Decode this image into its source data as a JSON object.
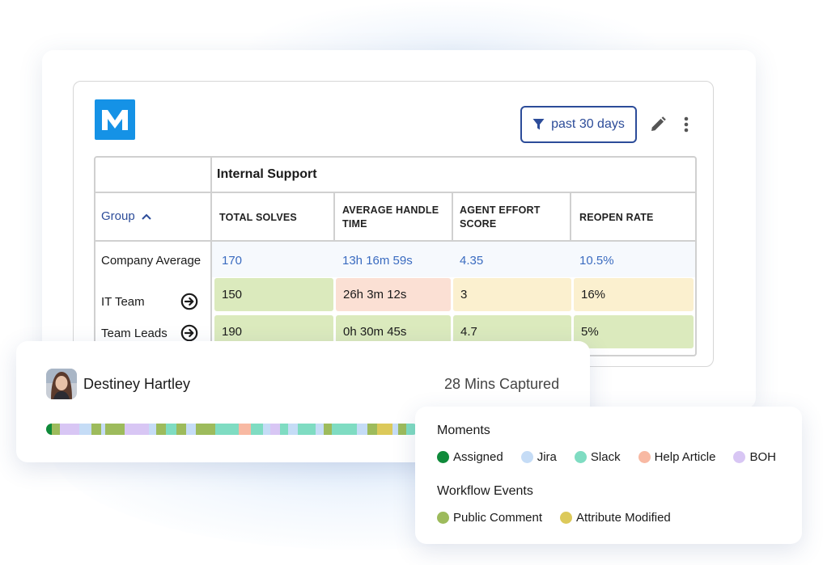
{
  "brand": {
    "logo_letter": "M",
    "logo_color": "#1592e6",
    "accent": "#2c4c99"
  },
  "toolbar": {
    "filter_label": "past 30 days",
    "filter_icon": "filter-icon",
    "edit_icon": "pencil-icon",
    "more_icon": "more-vertical-icon"
  },
  "table": {
    "section_title": "Internal Support",
    "group_header": "Group",
    "columns": [
      "TOTAL SOLVES",
      "AVERAGE HANDLE\nTIME",
      "AGENT EFFORT\nSCORE",
      "REOPEN RATE"
    ],
    "average_row": {
      "label": "Company Average",
      "values": [
        "170",
        "13h 16m 59s",
        "4.35",
        "10.5%"
      ]
    },
    "rows": [
      {
        "label": "IT Team",
        "values": [
          "150",
          "26h 3m 12s",
          "3",
          "16%"
        ],
        "statuses": [
          "good",
          "bad",
          "warn",
          "warn"
        ]
      },
      {
        "label": "Team Leads",
        "values": [
          "190",
          "0h 30m 45s",
          "4.7",
          "5%"
        ],
        "statuses": [
          "good",
          "good",
          "good",
          "good"
        ]
      }
    ],
    "status_colors": {
      "good": "#dbeabd",
      "bad": "#fbe0d4",
      "warn": "#fbf0cf"
    }
  },
  "profile": {
    "name": "Destiney Hartley",
    "captured": "28 Mins Captured"
  },
  "timeline_segments": [
    {
      "type": "assigned",
      "w": 1.5
    },
    {
      "type": "public",
      "w": 2
    },
    {
      "type": "boh",
      "w": 5
    },
    {
      "type": "jira",
      "w": 3
    },
    {
      "type": "public",
      "w": 2.5
    },
    {
      "type": "jira",
      "w": 1
    },
    {
      "type": "public",
      "w": 5
    },
    {
      "type": "boh",
      "w": 6
    },
    {
      "type": "jira",
      "w": 2
    },
    {
      "type": "public",
      "w": 2.5
    },
    {
      "type": "slack",
      "w": 2.5
    },
    {
      "type": "public",
      "w": 2.5
    },
    {
      "type": "jira",
      "w": 2.5
    },
    {
      "type": "public",
      "w": 5
    },
    {
      "type": "slack",
      "w": 6
    },
    {
      "type": "help",
      "w": 3
    },
    {
      "type": "slack",
      "w": 3
    },
    {
      "type": "jira",
      "w": 2
    },
    {
      "type": "boh",
      "w": 2.5
    },
    {
      "type": "slack",
      "w": 2
    },
    {
      "type": "jira",
      "w": 2.5
    },
    {
      "type": "slack",
      "w": 4.5
    },
    {
      "type": "jira",
      "w": 2
    },
    {
      "type": "public",
      "w": 2
    },
    {
      "type": "slack",
      "w": 6.5
    },
    {
      "type": "jira",
      "w": 2.5
    },
    {
      "type": "public",
      "w": 2.5
    },
    {
      "type": "attr",
      "w": 4
    },
    {
      "type": "jira",
      "w": 1.5
    },
    {
      "type": "public",
      "w": 2
    },
    {
      "type": "slack",
      "w": 3
    }
  ],
  "legend": {
    "moments_title": "Moments",
    "moments": [
      {
        "label": "Assigned",
        "color": "#0f8a3a",
        "icon": "dot"
      },
      {
        "label": "Jira",
        "color": "#c5dcf6",
        "icon": "dot"
      },
      {
        "label": "Slack",
        "color": "#7fdcc2",
        "icon": "dot"
      },
      {
        "label": "Help Article",
        "color": "#f8b9a3",
        "icon": "dot"
      },
      {
        "label": "BOH",
        "color": "#d8c6f4",
        "icon": "dot"
      }
    ],
    "workflow_title": "Workflow Events",
    "workflow": [
      {
        "label": "Public Comment",
        "color": "#9dbb5c",
        "icon": "dot"
      },
      {
        "label": "Attribute Modified",
        "color": "#dcc95a",
        "icon": "dot"
      }
    ]
  }
}
